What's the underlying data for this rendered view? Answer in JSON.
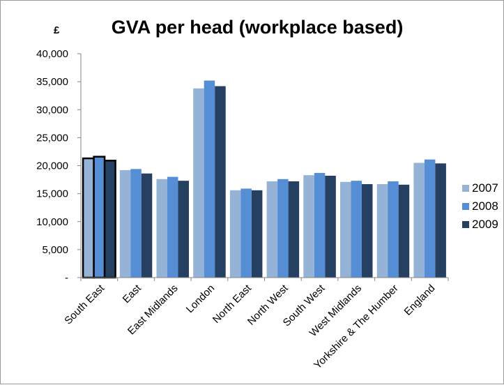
{
  "chart_data": {
    "type": "bar",
    "title": "GVA per head (workplace based)",
    "unit_label": "£",
    "categories": [
      "South East",
      "East",
      "East Midlands",
      "London",
      "North East",
      "North West",
      "South West",
      "West Midlands",
      "Yorkshire & The Humber",
      "England"
    ],
    "series": [
      {
        "name": "2007",
        "color": "#95b3d7",
        "values": [
          21300,
          19200,
          17600,
          33800,
          15600,
          17200,
          18300,
          17100,
          16700,
          20500
        ]
      },
      {
        "name": "2008",
        "color": "#558ed5",
        "values": [
          21600,
          19400,
          18000,
          35200,
          15900,
          17600,
          18700,
          17300,
          17200,
          21100
        ]
      },
      {
        "name": "2009",
        "color": "#254061",
        "values": [
          20900,
          18600,
          17300,
          34200,
          15600,
          17200,
          18200,
          16700,
          16600,
          20400
        ]
      }
    ],
    "ylim": [
      0,
      40000
    ],
    "yticks": [
      0,
      5000,
      10000,
      15000,
      20000,
      25000,
      30000,
      35000,
      40000
    ],
    "ytick_labels": [
      "-",
      "5,000",
      "10,000",
      "15,000",
      "20,000",
      "25,000",
      "30,000",
      "35,000",
      "40,000"
    ],
    "highlighted_category": "South East",
    "grid": false,
    "legend_position": "right"
  }
}
